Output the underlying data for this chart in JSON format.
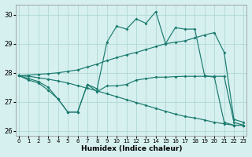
{
  "xlabel": "Humidex (Indice chaleur)",
  "background_color": "#d6f0ef",
  "line_color": "#1a7a6e",
  "grid_color": "#b0d8d4",
  "x": [
    0,
    1,
    2,
    3,
    4,
    5,
    6,
    7,
    8,
    9,
    10,
    11,
    12,
    13,
    14,
    15,
    16,
    17,
    18,
    19,
    20,
    21,
    22,
    23
  ],
  "y_zigzag_top": [
    27.9,
    27.8,
    27.7,
    27.5,
    27.1,
    26.65,
    26.65,
    27.6,
    27.45,
    29.05,
    29.6,
    29.5,
    29.85,
    29.7,
    30.1,
    29.0,
    29.55,
    29.5,
    29.5,
    27.9,
    27.85,
    26.3,
    26.2,
    26.2
  ],
  "y_upper_line": [
    27.9,
    27.92,
    27.95,
    27.97,
    28.0,
    28.05,
    28.1,
    28.2,
    28.3,
    28.42,
    28.52,
    28.62,
    28.7,
    28.8,
    28.9,
    29.0,
    29.05,
    29.1,
    29.2,
    29.3,
    29.38,
    28.7,
    26.4,
    26.3
  ],
  "y_lower_line": [
    27.9,
    27.88,
    27.83,
    27.78,
    27.72,
    27.65,
    27.56,
    27.47,
    27.38,
    27.28,
    27.18,
    27.08,
    26.98,
    26.88,
    26.78,
    26.68,
    26.58,
    26.5,
    26.45,
    26.38,
    26.3,
    26.25,
    26.2,
    26.2
  ],
  "y_zigzag_bot": [
    27.9,
    27.75,
    27.65,
    27.4,
    27.1,
    26.65,
    26.65,
    27.6,
    27.35,
    27.55,
    27.55,
    27.6,
    27.75,
    27.8,
    27.85,
    27.85,
    27.87,
    27.88,
    27.88,
    27.88,
    27.88,
    27.88,
    26.3,
    26.2
  ],
  "ylim": [
    25.85,
    30.35
  ],
  "yticks": [
    26,
    27,
    28,
    29,
    30
  ],
  "xlim": [
    -0.3,
    23.3
  ]
}
